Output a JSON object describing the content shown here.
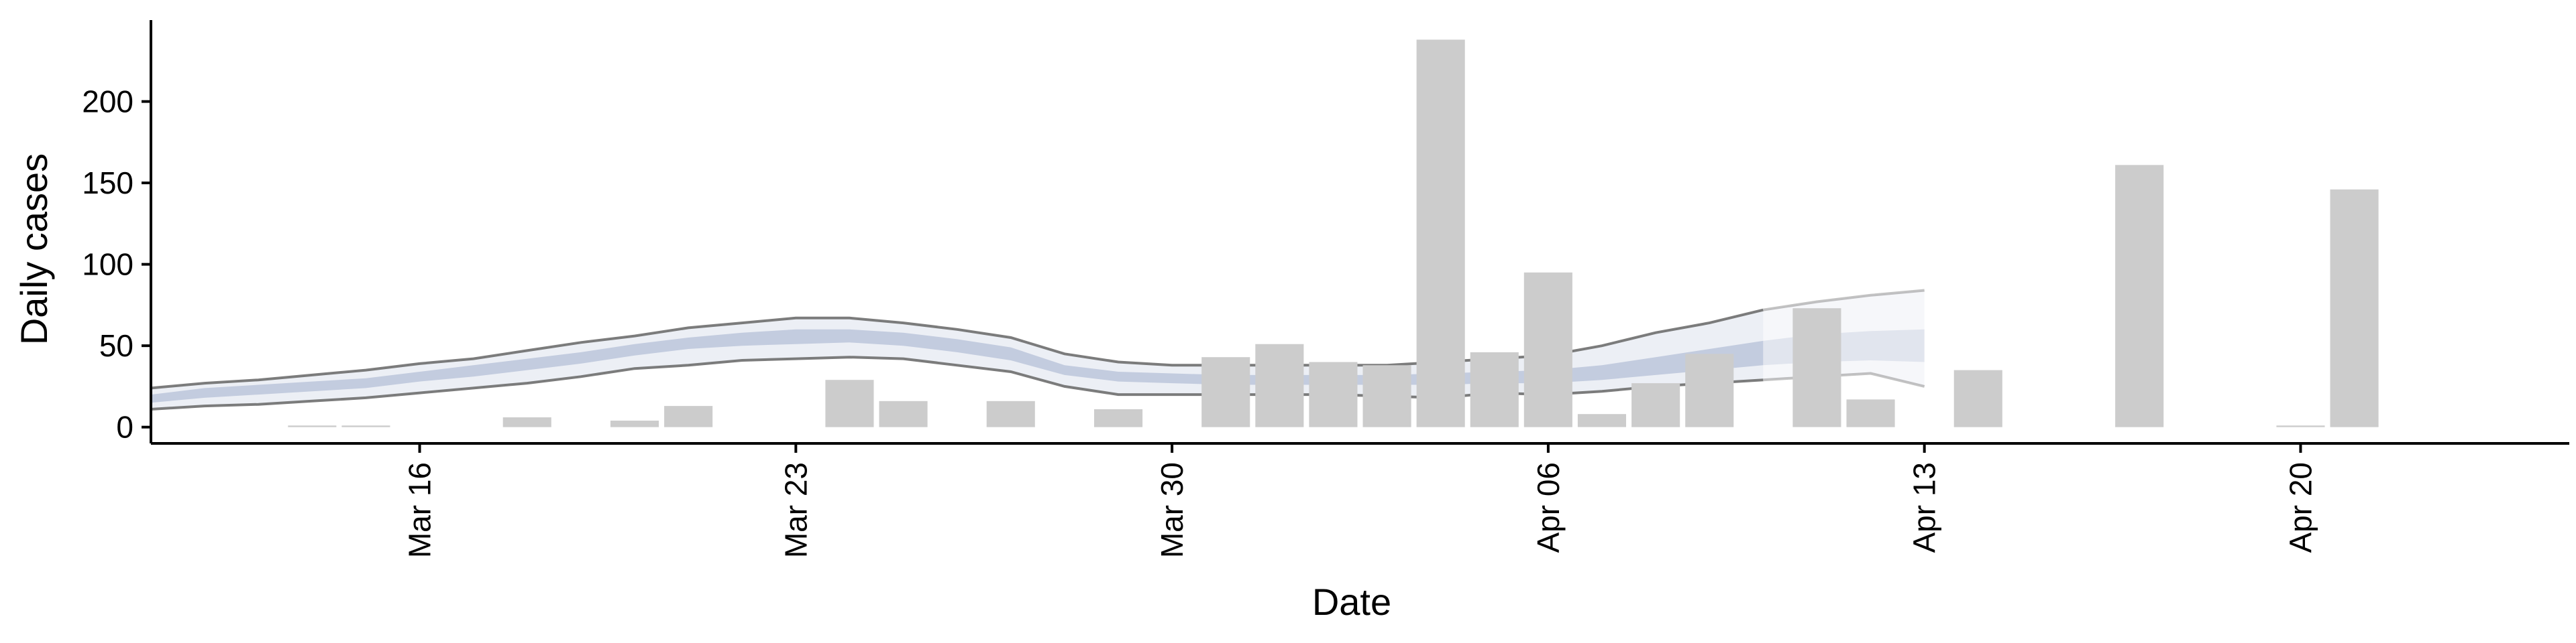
{
  "chart_data": {
    "type": "bar",
    "xlabel": "Date",
    "ylabel": "Daily cases",
    "ylim": [
      -10,
      250
    ],
    "yticks": [
      0,
      50,
      100,
      150,
      200
    ],
    "xticks": [
      {
        "date": "2020-03-16",
        "label": "Mar 16"
      },
      {
        "date": "2020-03-23",
        "label": "Mar 23"
      },
      {
        "date": "2020-03-30",
        "label": "Mar 30"
      },
      {
        "date": "2020-04-06",
        "label": "Apr 06"
      },
      {
        "date": "2020-04-13",
        "label": "Apr 13"
      },
      {
        "date": "2020-04-20",
        "label": "Apr 20"
      }
    ],
    "xrange": [
      "2020-03-11",
      "2020-04-25"
    ],
    "grid": false,
    "bars": [
      {
        "date": "2020-03-14",
        "value": 1
      },
      {
        "date": "2020-03-15",
        "value": 1
      },
      {
        "date": "2020-03-18",
        "value": 6
      },
      {
        "date": "2020-03-20",
        "value": 4
      },
      {
        "date": "2020-03-21",
        "value": 13
      },
      {
        "date": "2020-03-24",
        "value": 29
      },
      {
        "date": "2020-03-25",
        "value": 16
      },
      {
        "date": "2020-03-27",
        "value": 16
      },
      {
        "date": "2020-03-29",
        "value": 11
      },
      {
        "date": "2020-03-31",
        "value": 43
      },
      {
        "date": "2020-04-01",
        "value": 51
      },
      {
        "date": "2020-04-02",
        "value": 40
      },
      {
        "date": "2020-04-03",
        "value": 38
      },
      {
        "date": "2020-04-04",
        "value": 238
      },
      {
        "date": "2020-04-05",
        "value": 46
      },
      {
        "date": "2020-04-06",
        "value": 95
      },
      {
        "date": "2020-04-07",
        "value": 8
      },
      {
        "date": "2020-04-08",
        "value": 27
      },
      {
        "date": "2020-04-09",
        "value": 45
      },
      {
        "date": "2020-04-11",
        "value": 73
      },
      {
        "date": "2020-04-12",
        "value": 17
      },
      {
        "date": "2020-04-14",
        "value": 35
      },
      {
        "date": "2020-04-17",
        "value": 161
      },
      {
        "date": "2020-04-20",
        "value": 1
      },
      {
        "date": "2020-04-21",
        "value": 146
      }
    ],
    "estimate": [
      {
        "date": "2020-03-11",
        "lower90": 11,
        "lower50": 15,
        "median": 17,
        "upper50": 20,
        "upper90": 24
      },
      {
        "date": "2020-03-12",
        "lower90": 13,
        "lower50": 18,
        "median": 21,
        "upper50": 24,
        "upper90": 27
      },
      {
        "date": "2020-03-13",
        "lower90": 14,
        "lower50": 20,
        "median": 23,
        "upper50": 26,
        "upper90": 29
      },
      {
        "date": "2020-03-14",
        "lower90": 16,
        "lower50": 22,
        "median": 25,
        "upper50": 28,
        "upper90": 32
      },
      {
        "date": "2020-03-15",
        "lower90": 18,
        "lower50": 24,
        "median": 27,
        "upper50": 30,
        "upper90": 35
      },
      {
        "date": "2020-03-16",
        "lower90": 21,
        "lower50": 28,
        "median": 31,
        "upper50": 34,
        "upper90": 39
      },
      {
        "date": "2020-03-17",
        "lower90": 24,
        "lower50": 31,
        "median": 34,
        "upper50": 38,
        "upper90": 42
      },
      {
        "date": "2020-03-18",
        "lower90": 27,
        "lower50": 35,
        "median": 39,
        "upper50": 42,
        "upper90": 47
      },
      {
        "date": "2020-03-19",
        "lower90": 31,
        "lower50": 39,
        "median": 43,
        "upper50": 46,
        "upper90": 52
      },
      {
        "date": "2020-03-20",
        "lower90": 36,
        "lower50": 44,
        "median": 47,
        "upper50": 51,
        "upper90": 56
      },
      {
        "date": "2020-03-21",
        "lower90": 38,
        "lower50": 48,
        "median": 51,
        "upper50": 55,
        "upper90": 61
      },
      {
        "date": "2020-03-22",
        "lower90": 41,
        "lower50": 50,
        "median": 54,
        "upper50": 58,
        "upper90": 64
      },
      {
        "date": "2020-03-23",
        "lower90": 42,
        "lower50": 51,
        "median": 56,
        "upper50": 60,
        "upper90": 67
      },
      {
        "date": "2020-03-24",
        "lower90": 43,
        "lower50": 52,
        "median": 56,
        "upper50": 60,
        "upper90": 67
      },
      {
        "date": "2020-03-25",
        "lower90": 42,
        "lower50": 50,
        "median": 54,
        "upper50": 58,
        "upper90": 64
      },
      {
        "date": "2020-03-26",
        "lower90": 38,
        "lower50": 46,
        "median": 50,
        "upper50": 54,
        "upper90": 60
      },
      {
        "date": "2020-03-27",
        "lower90": 34,
        "lower50": 41,
        "median": 45,
        "upper50": 49,
        "upper90": 55
      },
      {
        "date": "2020-03-28",
        "lower90": 25,
        "lower50": 32,
        "median": 35,
        "upper50": 38,
        "upper90": 45
      },
      {
        "date": "2020-03-29",
        "lower90": 20,
        "lower50": 28,
        "median": 31,
        "upper50": 34,
        "upper90": 40
      },
      {
        "date": "2020-03-30",
        "lower90": 20,
        "lower50": 27,
        "median": 30,
        "upper50": 33,
        "upper90": 38
      },
      {
        "date": "2020-03-31",
        "lower90": 20,
        "lower50": 26,
        "median": 29,
        "upper50": 32,
        "upper90": 38
      },
      {
        "date": "2020-04-01",
        "lower90": 20,
        "lower50": 26,
        "median": 29,
        "upper50": 32,
        "upper90": 38
      },
      {
        "date": "2020-04-02",
        "lower90": 20,
        "lower50": 26,
        "median": 29,
        "upper50": 32,
        "upper90": 38
      },
      {
        "date": "2020-04-03",
        "lower90": 19,
        "lower50": 26,
        "median": 29,
        "upper50": 32,
        "upper90": 38
      },
      {
        "date": "2020-04-04",
        "lower90": 18,
        "lower50": 26,
        "median": 29,
        "upper50": 33,
        "upper90": 40
      },
      {
        "date": "2020-04-05",
        "lower90": 21,
        "lower50": 27,
        "median": 30,
        "upper50": 34,
        "upper90": 42
      },
      {
        "date": "2020-04-06",
        "lower90": 20,
        "lower50": 27,
        "median": 31,
        "upper50": 35,
        "upper90": 44
      },
      {
        "date": "2020-04-07",
        "lower90": 22,
        "lower50": 29,
        "median": 33,
        "upper50": 38,
        "upper90": 50
      },
      {
        "date": "2020-04-08",
        "lower90": 25,
        "lower50": 32,
        "median": 37,
        "upper50": 43,
        "upper90": 58
      },
      {
        "date": "2020-04-09",
        "lower90": 27,
        "lower50": 35,
        "median": 41,
        "upper50": 48,
        "upper90": 64
      },
      {
        "date": "2020-04-10",
        "lower90": 29,
        "lower50": 38,
        "median": 45,
        "upper50": 53,
        "upper90": 72
      },
      {
        "date": "2020-04-11",
        "lower90": 31,
        "lower50": 40,
        "median": 48,
        "upper50": 57,
        "upper90": 77
      },
      {
        "date": "2020-04-12",
        "lower90": 33,
        "lower50": 41,
        "median": 49,
        "upper50": 59,
        "upper90": 81
      },
      {
        "date": "2020-04-13",
        "lower90": 25,
        "lower50": 40,
        "median": 49,
        "upper50": 60,
        "upper90": 84
      }
    ],
    "forecast_start": "2020-04-10",
    "colors": {
      "bar": "#cccccc",
      "band_outer": "#dde1ec",
      "band_inner": "#a9b4d0",
      "bound_line": "#6e6e6e",
      "axis": "#000000"
    }
  }
}
